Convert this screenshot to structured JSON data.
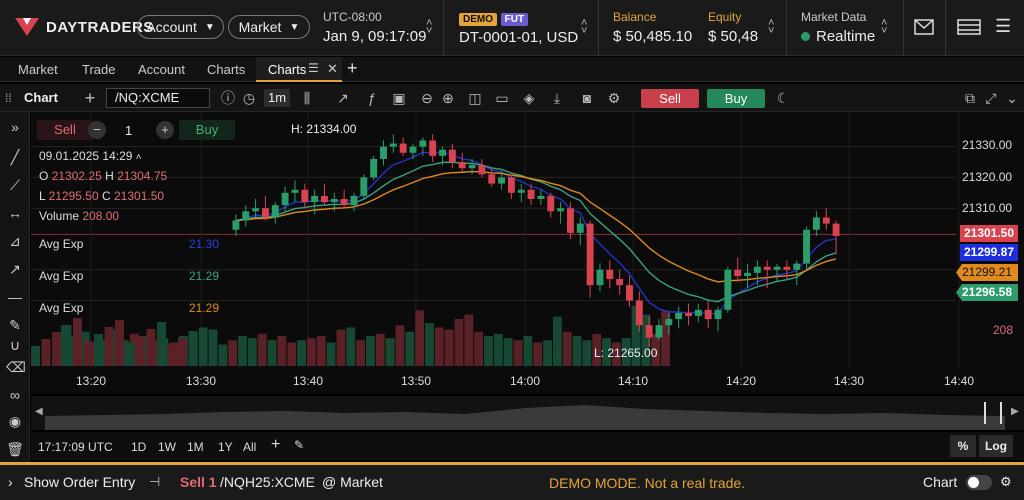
{
  "header": {
    "brand": "DAYTRADERS",
    "account_label": "Account",
    "market_label": "Market",
    "timezone": "UTC-08:00",
    "datetime": "Jan 9, 09:17:09",
    "demo_tag": "DEMO",
    "fut_tag": "FUT",
    "account_id": "DT-0001-01, USD",
    "balance_label": "Balance",
    "balance_value": "$ 50,485.10",
    "equity_label": "Equity",
    "equity_value": "$ 50,48",
    "market_data_label": "Market Data",
    "market_data_value": "Realtime"
  },
  "tabs": [
    "Market",
    "Trade",
    "Account",
    "Charts",
    "Charts"
  ],
  "toolbar": {
    "title": "Chart",
    "symbol": "/NQ:XCME",
    "interval": "1m",
    "sell": "Sell",
    "buy": "Buy"
  },
  "order_widget": {
    "sell": "Sell",
    "qty": "1",
    "buy": "Buy"
  },
  "legend": {
    "date": "09.01.2025 14:29",
    "o_label": "O",
    "o_value": "21302.25",
    "h_label": "H",
    "h_value": "21304.75",
    "l_label": "L",
    "l_value": "21295.50",
    "c_label": "C",
    "c_value": "21301.50",
    "volume_label": "Volume",
    "volume_value": "208.00",
    "indicators": [
      {
        "name": "Avg Exp",
        "value": "21.30",
        "color": "#2244dd"
      },
      {
        "name": "Avg Exp",
        "value": "21.29",
        "color": "#3aa17e"
      },
      {
        "name": "Avg Exp",
        "value": "21.29",
        "color": "#e08a1e"
      }
    ]
  },
  "annotations": {
    "high": "H: 21334.00",
    "low": "L: 21265.00"
  },
  "price_axis": {
    "ticks": [
      "21330.00",
      "21320.00",
      "21310.00"
    ],
    "badges": [
      {
        "text": "21301.50",
        "color": "#d9434f"
      },
      {
        "text": "21299.87",
        "color": "#1e2fe0"
      },
      {
        "text": "21299.21",
        "color": "#e08a1e"
      },
      {
        "text": "21296.58",
        "color": "#2a9d6a"
      }
    ],
    "volume_label": "208"
  },
  "time_axis": [
    "13:20",
    "13:30",
    "13:40",
    "13:50",
    "14:00",
    "14:10",
    "14:20",
    "14:30",
    "14:40"
  ],
  "range_bar": {
    "clock": "17:17:09 UTC",
    "ranges": [
      "1D",
      "1W",
      "1M",
      "1Y",
      "All"
    ],
    "percent": "%",
    "log": "Log"
  },
  "order_bar": {
    "show_entry": "Show Order Entry",
    "sell": "Sell 1",
    "symbol": "/NQH25:XCME",
    "at_market": "@ Market",
    "demo_notice": "DEMO MODE. Not a real trade.",
    "chart_label": "Chart"
  },
  "colors": {
    "accent": "#e3a43a",
    "up": "#2a9d6a",
    "down": "#d9434f",
    "ema_blue": "#2233cc",
    "ema_green": "#3aa17e",
    "ema_orange": "#e08a1e"
  },
  "chart_data": {
    "type": "candlestick",
    "ohlc": [
      [
        21303,
        21308,
        21301,
        21306
      ],
      [
        21306,
        21311,
        21304,
        21309
      ],
      [
        21309,
        21313,
        21307,
        21310
      ],
      [
        21310,
        21314,
        21306,
        21307
      ],
      [
        21307,
        21312,
        21305,
        21311
      ],
      [
        21311,
        21317,
        21309,
        21315
      ],
      [
        21315,
        21319,
        21312,
        21316
      ],
      [
        21316,
        21318,
        21310,
        21312
      ],
      [
        21312,
        21316,
        21308,
        21314
      ],
      [
        21314,
        21318,
        21311,
        21312
      ],
      [
        21312,
        21315,
        21309,
        21313
      ],
      [
        21313,
        21316,
        21310,
        21311
      ],
      [
        21311,
        21315,
        21309,
        21314
      ],
      [
        21314,
        21321,
        21313,
        21320
      ],
      [
        21320,
        21327,
        21319,
        21326
      ],
      [
        21326,
        21332,
        21324,
        21330
      ],
      [
        21330,
        21334,
        21328,
        21331
      ],
      [
        21331,
        21333,
        21327,
        21328
      ],
      [
        21328,
        21331,
        21326,
        21330
      ],
      [
        21330,
        21333,
        21327,
        21332
      ],
      [
        21332,
        21334,
        21325,
        21327
      ],
      [
        21327,
        21330,
        21324,
        21329
      ],
      [
        21329,
        21331,
        21323,
        21325
      ],
      [
        21325,
        21328,
        21322,
        21323
      ],
      [
        21323,
        21326,
        21321,
        21324
      ],
      [
        21324,
        21326,
        21320,
        21321
      ],
      [
        21321,
        21323,
        21317,
        21318
      ],
      [
        21318,
        21322,
        21316,
        21320
      ],
      [
        21320,
        21321,
        21313,
        21315
      ],
      [
        21315,
        21318,
        21312,
        21316
      ],
      [
        21316,
        21318,
        21311,
        21313
      ],
      [
        21313,
        21316,
        21311,
        21314
      ],
      [
        21314,
        21315,
        21307,
        21309
      ],
      [
        21309,
        21312,
        21305,
        21310
      ],
      [
        21310,
        21312,
        21300,
        21302
      ],
      [
        21302,
        21307,
        21298,
        21305
      ],
      [
        21305,
        21306,
        21281,
        21285
      ],
      [
        21285,
        21292,
        21283,
        21290
      ],
      [
        21290,
        21293,
        21284,
        21287
      ],
      [
        21287,
        21290,
        21282,
        21285
      ],
      [
        21285,
        21288,
        21278,
        21280
      ],
      [
        21280,
        21283,
        21270,
        21272
      ],
      [
        21272,
        21275,
        21265,
        21268
      ],
      [
        21268,
        21274,
        21267,
        21272
      ],
      [
        21272,
        21276,
        21269,
        21274
      ],
      [
        21274,
        21278,
        21271,
        21276
      ],
      [
        21276,
        21279,
        21272,
        21275
      ],
      [
        21275,
        21279,
        21273,
        21277
      ],
      [
        21277,
        21280,
        21271,
        21274
      ],
      [
        21274,
        21278,
        21270,
        21277
      ],
      [
        21277,
        21291,
        21276,
        21290
      ],
      [
        21290,
        21294,
        21286,
        21288
      ],
      [
        21288,
        21292,
        21284,
        21289
      ],
      [
        21289,
        21293,
        21285,
        21291
      ],
      [
        21291,
        21293,
        21284,
        21290
      ],
      [
        21290,
        21292,
        21286,
        21291
      ],
      [
        21291,
        21293,
        21287,
        21290
      ],
      [
        21290,
        21293,
        21285,
        21292
      ],
      [
        21292,
        21304,
        21290,
        21303
      ],
      [
        21303,
        21309,
        21301,
        21307
      ],
      [
        21307,
        21310,
        21303,
        21305
      ],
      [
        21305,
        21306,
        21295,
        21301
      ]
    ],
    "volume": [
      95,
      70,
      80,
      55,
      60,
      85,
      60,
      75,
      70,
      60,
      65,
      55,
      70,
      75,
      90,
      85,
      50,
      60,
      70,
      65,
      75,
      60,
      70,
      55,
      60,
      65,
      70,
      55,
      85,
      90,
      60,
      70,
      75,
      65,
      95,
      80,
      130,
      100,
      90,
      85,
      110,
      120,
      80,
      70,
      75,
      65,
      60,
      70,
      55,
      60,
      115,
      80,
      70,
      60,
      75,
      65,
      55,
      65,
      140,
      120,
      75,
      130
    ],
    "y_range": [
      21262,
      21338
    ],
    "x_ticks": [
      "13:20",
      "13:30",
      "13:40",
      "13:50",
      "14:00",
      "14:10",
      "14:20",
      "14:30",
      "14:40"
    ]
  }
}
